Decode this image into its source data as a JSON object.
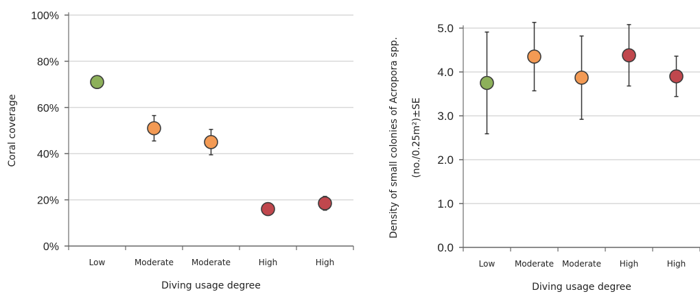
{
  "chart_data": [
    {
      "type": "scatter",
      "title": "",
      "xlabel": "Diving usage degree",
      "ylabel": "Coral coverage",
      "ylim": [
        0,
        100
      ],
      "yticks": [
        "0%",
        "20%",
        "40%",
        "60%",
        "80%",
        "100%"
      ],
      "ytick_values": [
        0,
        20,
        40,
        60,
        80,
        100
      ],
      "grid": true,
      "categories": [
        "Low",
        "Moderate",
        "Moderate",
        "High",
        "High"
      ],
      "values": [
        71,
        51,
        45,
        16,
        18.5
      ],
      "errors": [
        0,
        5.5,
        5.5,
        0,
        3
      ],
      "colors": [
        "#8db05a",
        "#f39a54",
        "#f39a54",
        "#c0474d",
        "#c0474d"
      ]
    },
    {
      "type": "scatter",
      "title": "",
      "xlabel": "Diving usage degree",
      "ylabel": [
        "Density of small colonies of Acropora spp.",
        "(no./0.25m²)±SE"
      ],
      "ylim": [
        0,
        5
      ],
      "yticks": [
        "0.0",
        "1.0",
        "2.0",
        "3.0",
        "4.0",
        "5.0"
      ],
      "ytick_values": [
        0,
        1,
        2,
        3,
        4,
        5
      ],
      "grid": true,
      "categories": [
        "Low",
        "Moderate",
        "Moderate",
        "High",
        "High"
      ],
      "values": [
        3.75,
        4.35,
        3.87,
        4.38,
        3.9
      ],
      "errors": [
        1.16,
        0.78,
        0.95,
        0.7,
        0.46
      ],
      "colors": [
        "#8db05a",
        "#f39a54",
        "#f39a54",
        "#c0474d",
        "#c0474d"
      ]
    }
  ]
}
